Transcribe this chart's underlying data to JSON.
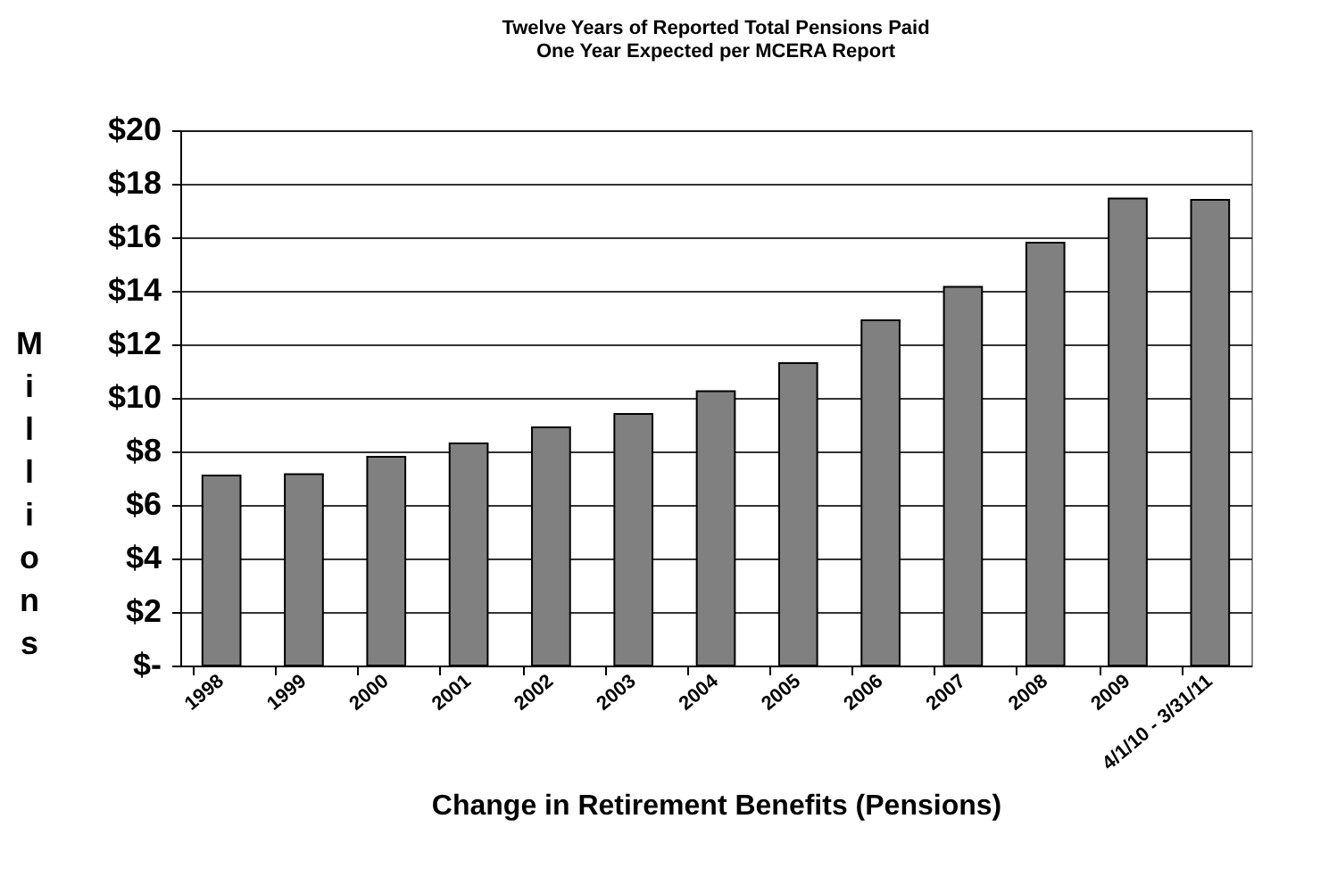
{
  "chart_data": {
    "type": "bar",
    "title": "Twelve Years of Reported Total Pensions Paid",
    "subtitle": "One Year Expected per MCERA Report",
    "xlabel": "Change in Retirement Benefits (Pensions)",
    "ylabel": "Millions",
    "categories": [
      "1998",
      "1999",
      "2000",
      "2001",
      "2002",
      "2003",
      "2004",
      "2005",
      "2006",
      "2007",
      "2008",
      "2009",
      "4/1/10 - 3/31/11"
    ],
    "values": [
      7.1,
      7.15,
      7.8,
      8.3,
      8.9,
      9.4,
      10.25,
      11.3,
      12.9,
      14.15,
      15.8,
      17.45,
      17.4
    ],
    "color": "#808080",
    "ylim": [
      0,
      20
    ],
    "yticks": [
      {
        "value": 0,
        "label": "$-"
      },
      {
        "value": 2,
        "label": "$2"
      },
      {
        "value": 4,
        "label": "$4"
      },
      {
        "value": 6,
        "label": "$6"
      },
      {
        "value": 8,
        "label": "$8"
      },
      {
        "value": 10,
        "label": "$10"
      },
      {
        "value": 12,
        "label": "$12"
      },
      {
        "value": 14,
        "label": "$14"
      },
      {
        "value": 16,
        "label": "$16"
      },
      {
        "value": 18,
        "label": "$18"
      },
      {
        "value": 20,
        "label": "$20"
      }
    ],
    "grid": "y"
  }
}
